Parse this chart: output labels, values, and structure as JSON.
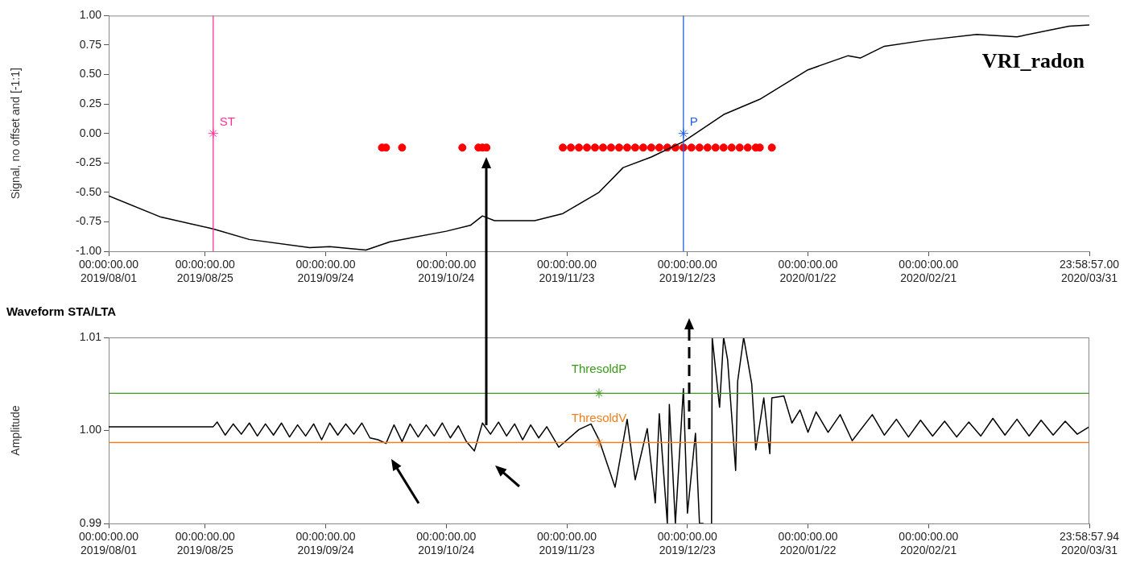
{
  "chart_data": [
    {
      "type": "line",
      "title": "VRI_radon",
      "ylabel": "Signal, no offset and [-1:1]",
      "xlim": [
        "2019-08-01",
        "2020-03-31T23:58:57"
      ],
      "xticks": [
        {
          "value": "2019-08-01",
          "label": "00:00:00.00\n2019/08/01"
        },
        {
          "value": "2019-08-25",
          "label": "00:00:00.00\n2019/08/25"
        },
        {
          "value": "2019-09-24",
          "label": "00:00:00.00\n2019/09/24"
        },
        {
          "value": "2019-10-24",
          "label": "00:00:00.00\n2019/10/24"
        },
        {
          "value": "2019-11-23",
          "label": "00:00:00.00\n2019/11/23"
        },
        {
          "value": "2019-12-23",
          "label": "00:00:00.00\n2019/12/23"
        },
        {
          "value": "2020-01-22",
          "label": "00:00:00.00\n2020/01/22"
        },
        {
          "value": "2020-02-21",
          "label": "00:00:00.00\n2020/02/21"
        },
        {
          "value": "2020-03-31T23:58:57",
          "label": "23:58:57.00\n2020/03/31"
        }
      ],
      "ylim": [
        -1,
        1
      ],
      "yticks": [
        {
          "value": -1,
          "label": "-1.00"
        },
        {
          "value": -0.75,
          "label": "-0.75"
        },
        {
          "value": -0.5,
          "label": "-0.50"
        },
        {
          "value": -0.25,
          "label": "-0.25"
        },
        {
          "value": 0,
          "label": "0.00"
        },
        {
          "value": 0.25,
          "label": "0.25"
        },
        {
          "value": 0.5,
          "label": "0.50"
        },
        {
          "value": 0.75,
          "label": "0.75"
        },
        {
          "value": 1,
          "label": "1.00"
        }
      ],
      "grid": false,
      "ref_lines": [
        {
          "axis": "x",
          "value": "2019-08-27",
          "label": "ST",
          "color": "#ff3399"
        },
        {
          "axis": "x",
          "value": "2019-12-22",
          "label": "P",
          "color": "#1f5fe0"
        }
      ],
      "series": [
        {
          "type": "line",
          "color": "#000000",
          "marker": "none",
          "x": [
            "2019-08-01",
            "2019-08-14",
            "2019-08-27",
            "2019-09-05",
            "2019-09-20",
            "2019-09-25",
            "2019-10-04",
            "2019-10-10",
            "2019-10-24",
            "2019-10-30",
            "2019-11-02",
            "2019-11-05",
            "2019-11-15",
            "2019-11-22",
            "2019-12-01",
            "2019-12-07",
            "2019-12-14",
            "2019-12-22",
            "2020-01-01",
            "2020-01-10",
            "2020-01-22",
            "2020-02-01",
            "2020-02-04",
            "2020-02-10",
            "2020-02-20",
            "2020-03-04",
            "2020-03-14",
            "2020-03-27",
            "2020-03-31T23:58:57"
          ],
          "values": [
            -0.53,
            -0.71,
            -0.81,
            -0.9,
            -0.97,
            -0.96,
            -0.99,
            -0.92,
            -0.83,
            -0.78,
            -0.7,
            -0.74,
            -0.74,
            -0.68,
            -0.5,
            -0.29,
            -0.2,
            -0.07,
            0.16,
            0.29,
            0.54,
            0.66,
            0.64,
            0.74,
            0.79,
            0.84,
            0.82,
            0.91,
            0.92
          ]
        },
        {
          "type": "scatter",
          "color": "#ff0000",
          "marker": "circle",
          "x": [
            "2019-10-08",
            "2019-10-09",
            "2019-10-13",
            "2019-10-28",
            "2019-11-01",
            "2019-11-02",
            "2019-11-03",
            "2019-11-22",
            "2019-11-24",
            "2019-11-26",
            "2019-11-28",
            "2019-11-30",
            "2019-12-02",
            "2019-12-04",
            "2019-12-06",
            "2019-12-08",
            "2019-12-10",
            "2019-12-12",
            "2019-12-14",
            "2019-12-16",
            "2019-12-18",
            "2019-12-20",
            "2019-12-22",
            "2019-12-24",
            "2019-12-26",
            "2019-12-28",
            "2019-12-30",
            "2020-01-01",
            "2020-01-03",
            "2020-01-05",
            "2020-01-07",
            "2020-01-09",
            "2020-01-10",
            "2020-01-13"
          ],
          "values": [
            -0.12,
            -0.12,
            -0.12,
            -0.12,
            -0.12,
            -0.12,
            -0.12,
            -0.12,
            -0.12,
            -0.12,
            -0.12,
            -0.12,
            -0.12,
            -0.12,
            -0.12,
            -0.12,
            -0.12,
            -0.12,
            -0.12,
            -0.12,
            -0.12,
            -0.12,
            -0.12,
            -0.12,
            -0.12,
            -0.12,
            -0.12,
            -0.12,
            -0.12,
            -0.12,
            -0.12,
            -0.12,
            -0.12,
            -0.12
          ]
        }
      ]
    },
    {
      "type": "line",
      "title": "Waveform STA/LTA",
      "ylabel": "Amplitude",
      "xlim": [
        "2019-08-01",
        "2020-03-31T23:58:57"
      ],
      "xticks": [
        {
          "value": "2019-08-01",
          "label": "00:00:00.00\n2019/08/01"
        },
        {
          "value": "2019-08-25",
          "label": "00:00:00.00\n2019/08/25"
        },
        {
          "value": "2019-09-24",
          "label": "00:00:00.00\n2019/09/24"
        },
        {
          "value": "2019-10-24",
          "label": "00:00:00.00\n2019/10/24"
        },
        {
          "value": "2019-11-23",
          "label": "00:00:00.00\n2019/11/23"
        },
        {
          "value": "2019-12-23",
          "label": "00:00:00.00\n2019/12/23"
        },
        {
          "value": "2020-01-22",
          "label": "00:00:00.00\n2020/01/22"
        },
        {
          "value": "2020-02-21",
          "label": "00:00:00.00\n2020/02/21"
        },
        {
          "value": "2020-03-31T23:58:57",
          "label": "23:58:57.94\n2020/03/31"
        }
      ],
      "ylim": [
        0.99,
        1.01
      ],
      "yticks": [
        {
          "value": 0.99,
          "label": "0.99"
        },
        {
          "value": 1,
          "label": "1.00"
        },
        {
          "value": 1.01,
          "label": "1.01"
        }
      ],
      "grid": false,
      "ref_lines": [
        {
          "axis": "y",
          "value": 1.004,
          "label": "ThresoldP",
          "color": "#3a9a1a"
        },
        {
          "axis": "y",
          "value": 0.9987,
          "label": "ThresoldV",
          "color": "#f08020"
        }
      ],
      "series": [
        {
          "type": "line",
          "color": "#000000",
          "marker": "none",
          "x": [
            "2019-08-01",
            "2019-08-27",
            "2019-08-28",
            "2019-08-30",
            "2019-09-01",
            "2019-09-03",
            "2019-09-05",
            "2019-09-07",
            "2019-09-09",
            "2019-09-11",
            "2019-09-13",
            "2019-09-15",
            "2019-09-17",
            "2019-09-19",
            "2019-09-21",
            "2019-09-23",
            "2019-09-25",
            "2019-09-27",
            "2019-09-29",
            "2019-10-01",
            "2019-10-03",
            "2019-10-05",
            "2019-10-07",
            "2019-10-09",
            "2019-10-11",
            "2019-10-13",
            "2019-10-15",
            "2019-10-17",
            "2019-10-19",
            "2019-10-21",
            "2019-10-23",
            "2019-10-25",
            "2019-10-27",
            "2019-10-29",
            "2019-10-31",
            "2019-11-02",
            "2019-11-04",
            "2019-11-06",
            "2019-11-08",
            "2019-11-10",
            "2019-11-12",
            "2019-11-14",
            "2019-11-16",
            "2019-11-18",
            "2019-11-21",
            "2019-11-26",
            "2019-11-29",
            "2019-12-01",
            "2019-12-05",
            "2019-12-08",
            "2019-12-10",
            "2019-12-13",
            "2019-12-15",
            "2019-12-16",
            "2019-12-18",
            "2019-12-18T12:00",
            "2019-12-20",
            "2019-12-22",
            "2019-12-23",
            "2019-12-25",
            "2019-12-26",
            "2019-12-27",
            "2019-12-28",
            "2019-12-29",
            "2019-12-29T04:00",
            "2019-12-31",
            "2020-01-01",
            "2020-01-02",
            "2020-01-04",
            "2020-01-04T12:00",
            "2020-01-06",
            "2020-01-08",
            "2020-01-09",
            "2020-01-11",
            "2020-01-12T12:00",
            "2020-01-13",
            "2020-01-16",
            "2020-01-18",
            "2020-01-20",
            "2020-01-22",
            "2020-01-24",
            "2020-01-27",
            "2020-01-30",
            "2020-02-02",
            "2020-02-07",
            "2020-02-10",
            "2020-02-13",
            "2020-02-16",
            "2020-02-19",
            "2020-02-22",
            "2020-02-25",
            "2020-02-28",
            "2020-03-02",
            "2020-03-05",
            "2020-03-08",
            "2020-03-11",
            "2020-03-14",
            "2020-03-17",
            "2020-03-20",
            "2020-03-23",
            "2020-03-26",
            "2020-03-29",
            "2020-03-31T23:58:57"
          ],
          "values": [
            1.0004,
            1.0004,
            1.0009,
            0.9995,
            1.0007,
            0.9996,
            1.0008,
            0.9994,
            1.0007,
            0.9995,
            1.0008,
            0.9993,
            1.0006,
            0.9994,
            1.0007,
            0.999,
            1.0008,
            0.9995,
            1.0007,
            0.9996,
            1.0008,
            0.9992,
            0.999,
            0.9986,
            1.0006,
            0.9988,
            1.0007,
            0.9993,
            1.0006,
            0.9994,
            1.0008,
            0.9992,
            1.0005,
            0.9988,
            0.9978,
            1.0008,
            0.9996,
            1.0009,
            0.9994,
            1.0007,
            0.999,
            1.0006,
            0.9992,
            1.0004,
            0.9982,
            1.0001,
            1.0007,
            0.999,
            0.9939,
            1.0012,
            0.9947,
            1.0002,
            0.9922,
            1.0018,
            0.99,
            1.0028,
            0.99,
            1.0045,
            0.9911,
            0.9997,
            0.99,
            0.99,
            null,
            0.99,
            1.01,
            1.0025,
            1.01,
            1.0076,
            0.9957,
            1.0053,
            1.01,
            1.005,
            0.9979,
            1.0035,
            0.9975,
            1.0035,
            1.0037,
            1.0008,
            1.0022,
            0.9998,
            1.002,
            0.9998,
            1.0017,
            0.9989,
            1.0017,
            0.9995,
            1.0012,
            0.9993,
            1.0011,
            0.9994,
            1.001,
            0.9993,
            1.0009,
            0.9994,
            1.0013,
            0.9995,
            1.0012,
            0.9994,
            1.0011,
            0.9995,
            1.001,
            0.9996,
            1.0004
          ]
        }
      ]
    }
  ]
}
